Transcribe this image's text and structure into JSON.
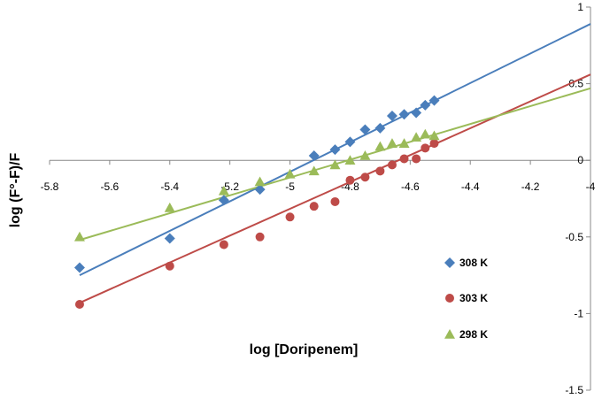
{
  "chart_data": {
    "type": "scatter",
    "xlabel": "log [Doripenem]",
    "ylabel": "log (F°-F)/F",
    "xlim": [
      -5.8,
      -4.0
    ],
    "ylim": [
      -1.5,
      1.0
    ],
    "xticks": [
      "-5.8",
      "-5.6",
      "-5.4",
      "-5.2",
      "-5",
      "-4.8",
      "-4.6",
      "-4.4",
      "-4.2",
      "-4"
    ],
    "yticks": [
      "1",
      "0.5",
      "0",
      "-0.5",
      "-1",
      "-1.5"
    ],
    "grid": false,
    "legend_position": "right",
    "series": [
      {
        "name": "308 K",
        "marker": "diamond",
        "color": "#4a7ebb",
        "x": [
          -5.7,
          -5.4,
          -5.22,
          -5.1,
          -4.92,
          -4.85,
          -4.8,
          -4.75,
          -4.7,
          -4.66,
          -4.62,
          -4.58,
          -4.55,
          -4.52
        ],
        "y": [
          -0.7,
          -0.51,
          -0.26,
          -0.19,
          0.03,
          0.07,
          0.12,
          0.2,
          0.21,
          0.29,
          0.3,
          0.31,
          0.36,
          0.39
        ],
        "trendline": {
          "x1": -5.7,
          "y1": -0.75,
          "x2": -4.0,
          "y2": 0.89
        }
      },
      {
        "name": "303 K",
        "marker": "circle",
        "color": "#be4b48",
        "x": [
          -5.7,
          -5.4,
          -5.22,
          -5.1,
          -5.0,
          -4.92,
          -4.85,
          -4.8,
          -4.75,
          -4.7,
          -4.66,
          -4.62,
          -4.58,
          -4.55,
          -4.52
        ],
        "y": [
          -0.94,
          -0.69,
          -0.55,
          -0.5,
          -0.37,
          -0.3,
          -0.27,
          -0.13,
          -0.11,
          -0.07,
          -0.03,
          0.01,
          0.01,
          0.08,
          0.11
        ],
        "trendline": {
          "x1": -5.7,
          "y1": -0.93,
          "x2": -4.0,
          "y2": 0.56
        }
      },
      {
        "name": "298 K",
        "marker": "triangle",
        "color": "#9bbb59",
        "x": [
          -5.7,
          -5.4,
          -5.22,
          -5.1,
          -5.0,
          -4.92,
          -4.85,
          -4.8,
          -4.75,
          -4.7,
          -4.66,
          -4.62,
          -4.58,
          -4.55,
          -4.52
        ],
        "y": [
          -0.5,
          -0.31,
          -0.2,
          -0.14,
          -0.09,
          -0.07,
          -0.03,
          0.0,
          0.03,
          0.09,
          0.11,
          0.11,
          0.15,
          0.17,
          0.16
        ],
        "trendline": {
          "x1": -5.7,
          "y1": -0.52,
          "x2": -4.0,
          "y2": 0.47
        }
      }
    ]
  }
}
